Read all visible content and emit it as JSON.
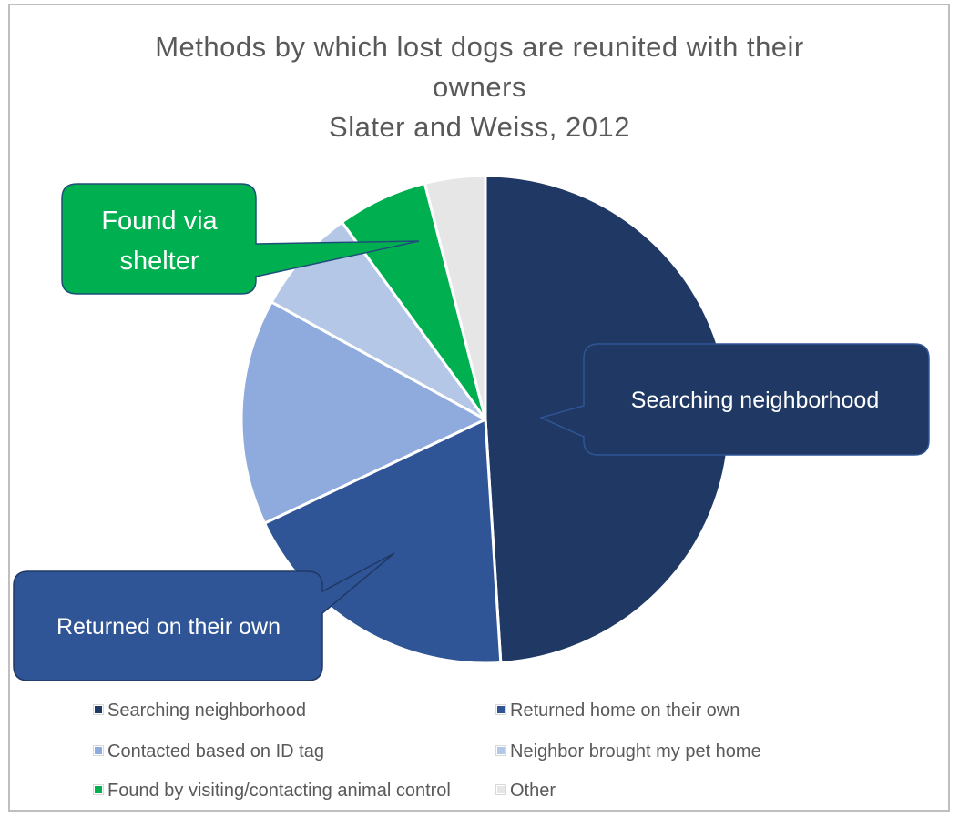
{
  "title": {
    "line1": "Methods by which lost dogs are reunited with their",
    "line2": "owners",
    "line3": "Slater and Weiss, 2012"
  },
  "chart_data": {
    "type": "pie",
    "title": "Methods by which lost dogs are reunited with their owners Slater and Weiss, 2012",
    "start_angle_deg": 0,
    "direction": "clockwise",
    "legend_position": "bottom",
    "slices": [
      {
        "label": "Searching neighborhood",
        "value": 49,
        "color": "#203864"
      },
      {
        "label": "Returned home on their own",
        "value": 19,
        "color": "#2f5597"
      },
      {
        "label": "Contacted based on ID tag",
        "value": 15,
        "color": "#8faadc"
      },
      {
        "label": "Neighbor brought my pet home",
        "value": 7,
        "color": "#b4c7e7"
      },
      {
        "label": "Found by visiting/contacting animal control",
        "value": 6,
        "color": "#00b050"
      },
      {
        "label": "Other",
        "value": 4,
        "color": "#e7e6e6"
      }
    ]
  },
  "callouts": {
    "shelter": {
      "line1": "Found via",
      "line2": "shelter",
      "color": "#00b050"
    },
    "searching": {
      "text": "Searching neighborhood",
      "color": "#203864"
    },
    "returned": {
      "text": "Returned on their own",
      "color": "#2f5597"
    }
  }
}
